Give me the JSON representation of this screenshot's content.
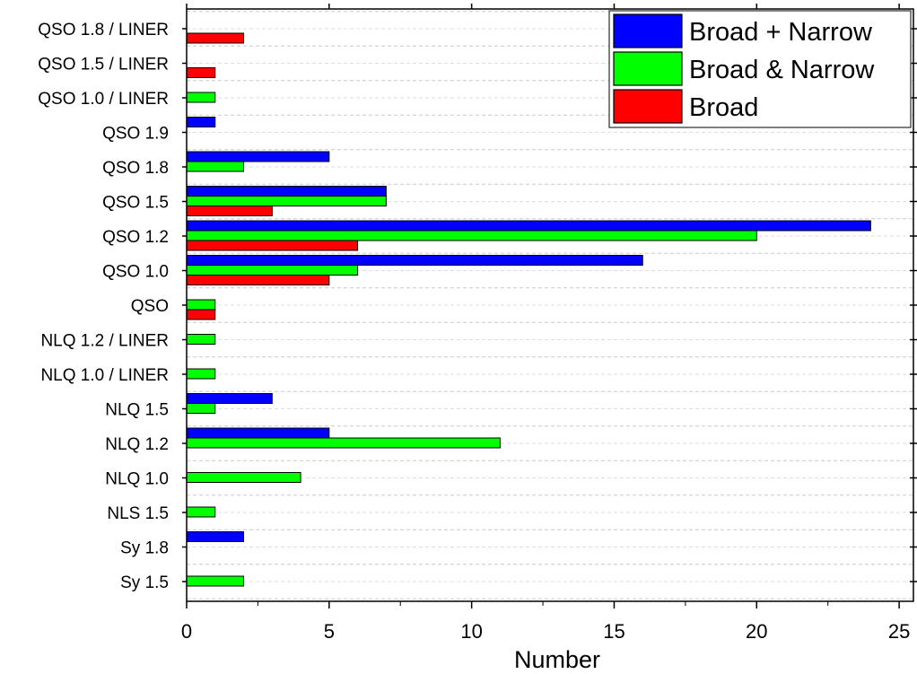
{
  "chart_data": {
    "type": "bar",
    "orientation": "horizontal",
    "title": "",
    "xlabel": "Number",
    "ylabel": "",
    "xlim": [
      0,
      25.5
    ],
    "xticks": [
      0,
      5,
      10,
      15,
      20,
      25
    ],
    "grid": "horizontal dashed",
    "legend_position": "top-right",
    "categories": [
      "QSO 1.8 / LINER",
      "QSO 1.5 / LINER",
      "QSO 1.0 / LINER",
      "QSO 1.9",
      "QSO 1.8",
      "QSO 1.5",
      "QSO 1.2",
      "QSO 1.0",
      "QSO",
      "NLQ 1.2 / LINER",
      "NLQ 1.0 / LINER",
      "NLQ 1.5",
      "NLQ 1.2",
      "NLQ 1.0",
      "NLS 1.5",
      "Sy 1.8",
      "Sy 1.5"
    ],
    "series": [
      {
        "name": "Broad + Narrow",
        "color": "#0000ff",
        "values": [
          0,
          0,
          0,
          1,
          5,
          7,
          24,
          16,
          0,
          0,
          0,
          3,
          5,
          0,
          0,
          2,
          0
        ]
      },
      {
        "name": "Broad & Narrow",
        "color": "#00ff00",
        "values": [
          0,
          0,
          1,
          0,
          2,
          7,
          20,
          6,
          1,
          1,
          1,
          1,
          11,
          4,
          1,
          0,
          2
        ]
      },
      {
        "name": "Broad",
        "color": "#ff0000",
        "values": [
          2,
          1,
          0,
          0,
          0,
          3,
          6,
          5,
          1,
          0,
          0,
          0,
          0,
          0,
          0,
          0,
          0
        ]
      }
    ]
  }
}
